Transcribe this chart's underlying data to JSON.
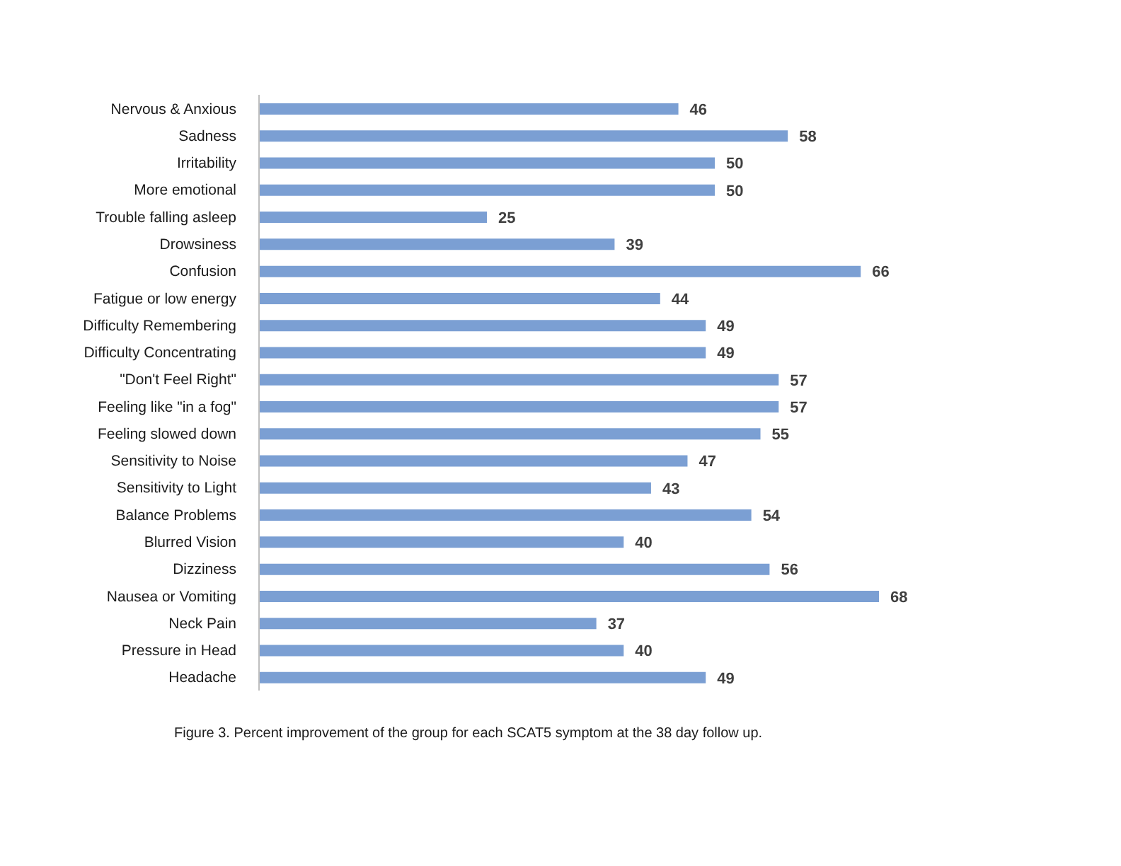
{
  "chart_data": {
    "type": "bar",
    "orientation": "horizontal",
    "categories": [
      "Nervous & Anxious",
      "Sadness",
      "Irritability",
      "More emotional",
      "Trouble falling asleep",
      "Drowsiness",
      "Confusion",
      "Fatigue or low energy",
      "Difficulty Remembering",
      "Difficulty Concentrating",
      "\"Don't Feel Right\"",
      "Feeling like \"in a fog\"",
      "Feeling slowed down",
      "Sensitivity to Noise",
      "Sensitivity to Light",
      "Balance Problems",
      "Blurred Vision",
      "Dizziness",
      "Nausea or Vomiting",
      "Neck Pain",
      "Pressure in Head",
      "Headache"
    ],
    "values": [
      46,
      58,
      50,
      50,
      25,
      39,
      66,
      44,
      49,
      49,
      57,
      57,
      55,
      47,
      43,
      54,
      40,
      56,
      68,
      37,
      40,
      49
    ],
    "color": "#7b9fd3",
    "data_labels": true,
    "annotations": [
      "Figure 3. Percent improvement of the group for each SCAT5 symptom at the 38 day follow up."
    ]
  }
}
